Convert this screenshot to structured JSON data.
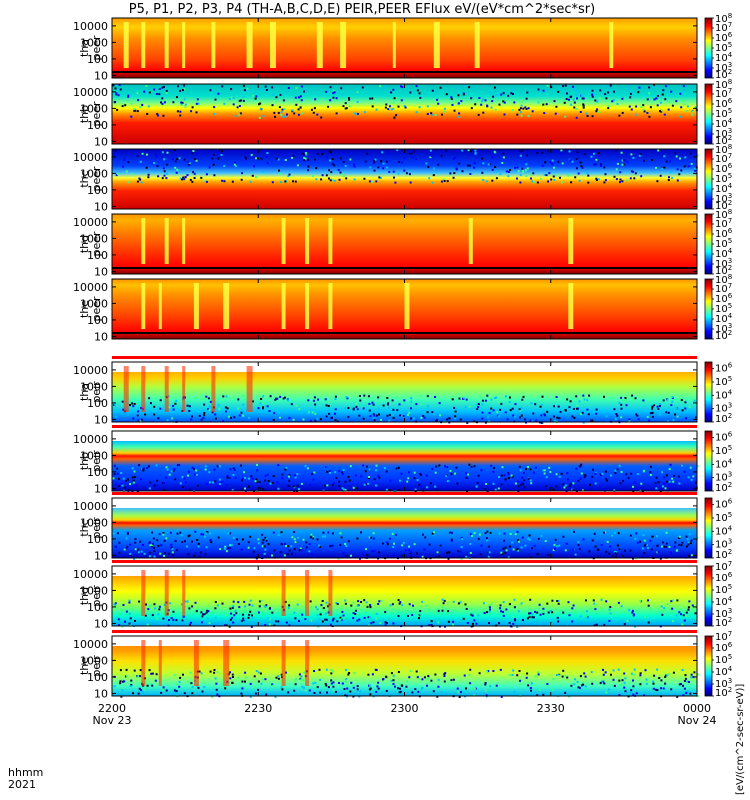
{
  "title": "P5, P1, P2, P3, P4 (TH-A,B,C,D,E) PEIR,PEER EFlux eV/(eV*cm^2*sec*sr)",
  "time_label": "hhmm",
  "year_label": "2021",
  "colorbar_unit": "[eV/(cm^2-sec-sr-eV)]",
  "chart_data": {
    "type": "heatmap",
    "x": {
      "tick_labels": [
        "2200",
        "2230",
        "2300",
        "2330",
        "0000"
      ],
      "tick_dates": [
        "Nov 23",
        "",
        "",
        "",
        "Nov 24"
      ],
      "range": [
        "2021-11-23T22:00",
        "2021-11-24T00:00"
      ]
    },
    "y_scale": "log",
    "ylim": [
      7,
      30000
    ],
    "y_ticks": [
      "10000",
      "1000",
      "100",
      "10"
    ],
    "panels": [
      {
        "probe": "tha",
        "species": "peer",
        "cb_labels": [
          "10^8",
          "10^7",
          "10^6",
          "10^5",
          "10^4",
          "10^3",
          "10^2"
        ],
        "cb_range": [
          2,
          8
        ]
      },
      {
        "probe": "thb",
        "species": "peer",
        "cb_labels": [
          "10^8",
          "10^7",
          "10^6",
          "10^5",
          "10^4",
          "10^3",
          "10^2"
        ],
        "cb_range": [
          2,
          8
        ]
      },
      {
        "probe": "thc",
        "species": "peer",
        "cb_labels": [
          "10^8",
          "10^7",
          "10^6",
          "10^5",
          "10^4",
          "10^3",
          "10^2"
        ],
        "cb_range": [
          2,
          8
        ]
      },
      {
        "probe": "thd",
        "species": "peer",
        "cb_labels": [
          "10^8",
          "10^7",
          "10^6",
          "10^5",
          "10^4",
          "10^3",
          "10^2"
        ],
        "cb_range": [
          2,
          8
        ]
      },
      {
        "probe": "the",
        "species": "peer",
        "cb_labels": [
          "10^8",
          "10^7",
          "10^6",
          "10^5",
          "10^4",
          "10^3",
          "10^2"
        ],
        "cb_range": [
          2,
          8
        ]
      },
      {
        "probe": "tha",
        "species": "peir",
        "cb_labels": [
          "10^6",
          "10^5",
          "10^4",
          "10^3",
          "10^2"
        ],
        "cb_range": [
          2,
          6.5
        ]
      },
      {
        "probe": "thb",
        "species": "peir",
        "cb_labels": [
          "10^6",
          "10^5",
          "10^4",
          "10^3",
          "10^2"
        ],
        "cb_range": [
          2,
          6.5
        ]
      },
      {
        "probe": "thc",
        "species": "peir",
        "cb_labels": [
          "10^6",
          "10^5",
          "10^4",
          "10^3",
          "10^2"
        ],
        "cb_range": [
          2,
          6.5
        ]
      },
      {
        "probe": "thd",
        "species": "peir",
        "cb_labels": [
          "10^7",
          "10^6",
          "10^5",
          "10^4",
          "10^3",
          "10^2"
        ],
        "cb_range": [
          2,
          7
        ]
      },
      {
        "probe": "the",
        "species": "peir",
        "cb_labels": [
          "10^7",
          "10^6",
          "10^5",
          "10^4",
          "10^3",
          "10^2"
        ],
        "cb_range": [
          2,
          7
        ]
      }
    ]
  }
}
